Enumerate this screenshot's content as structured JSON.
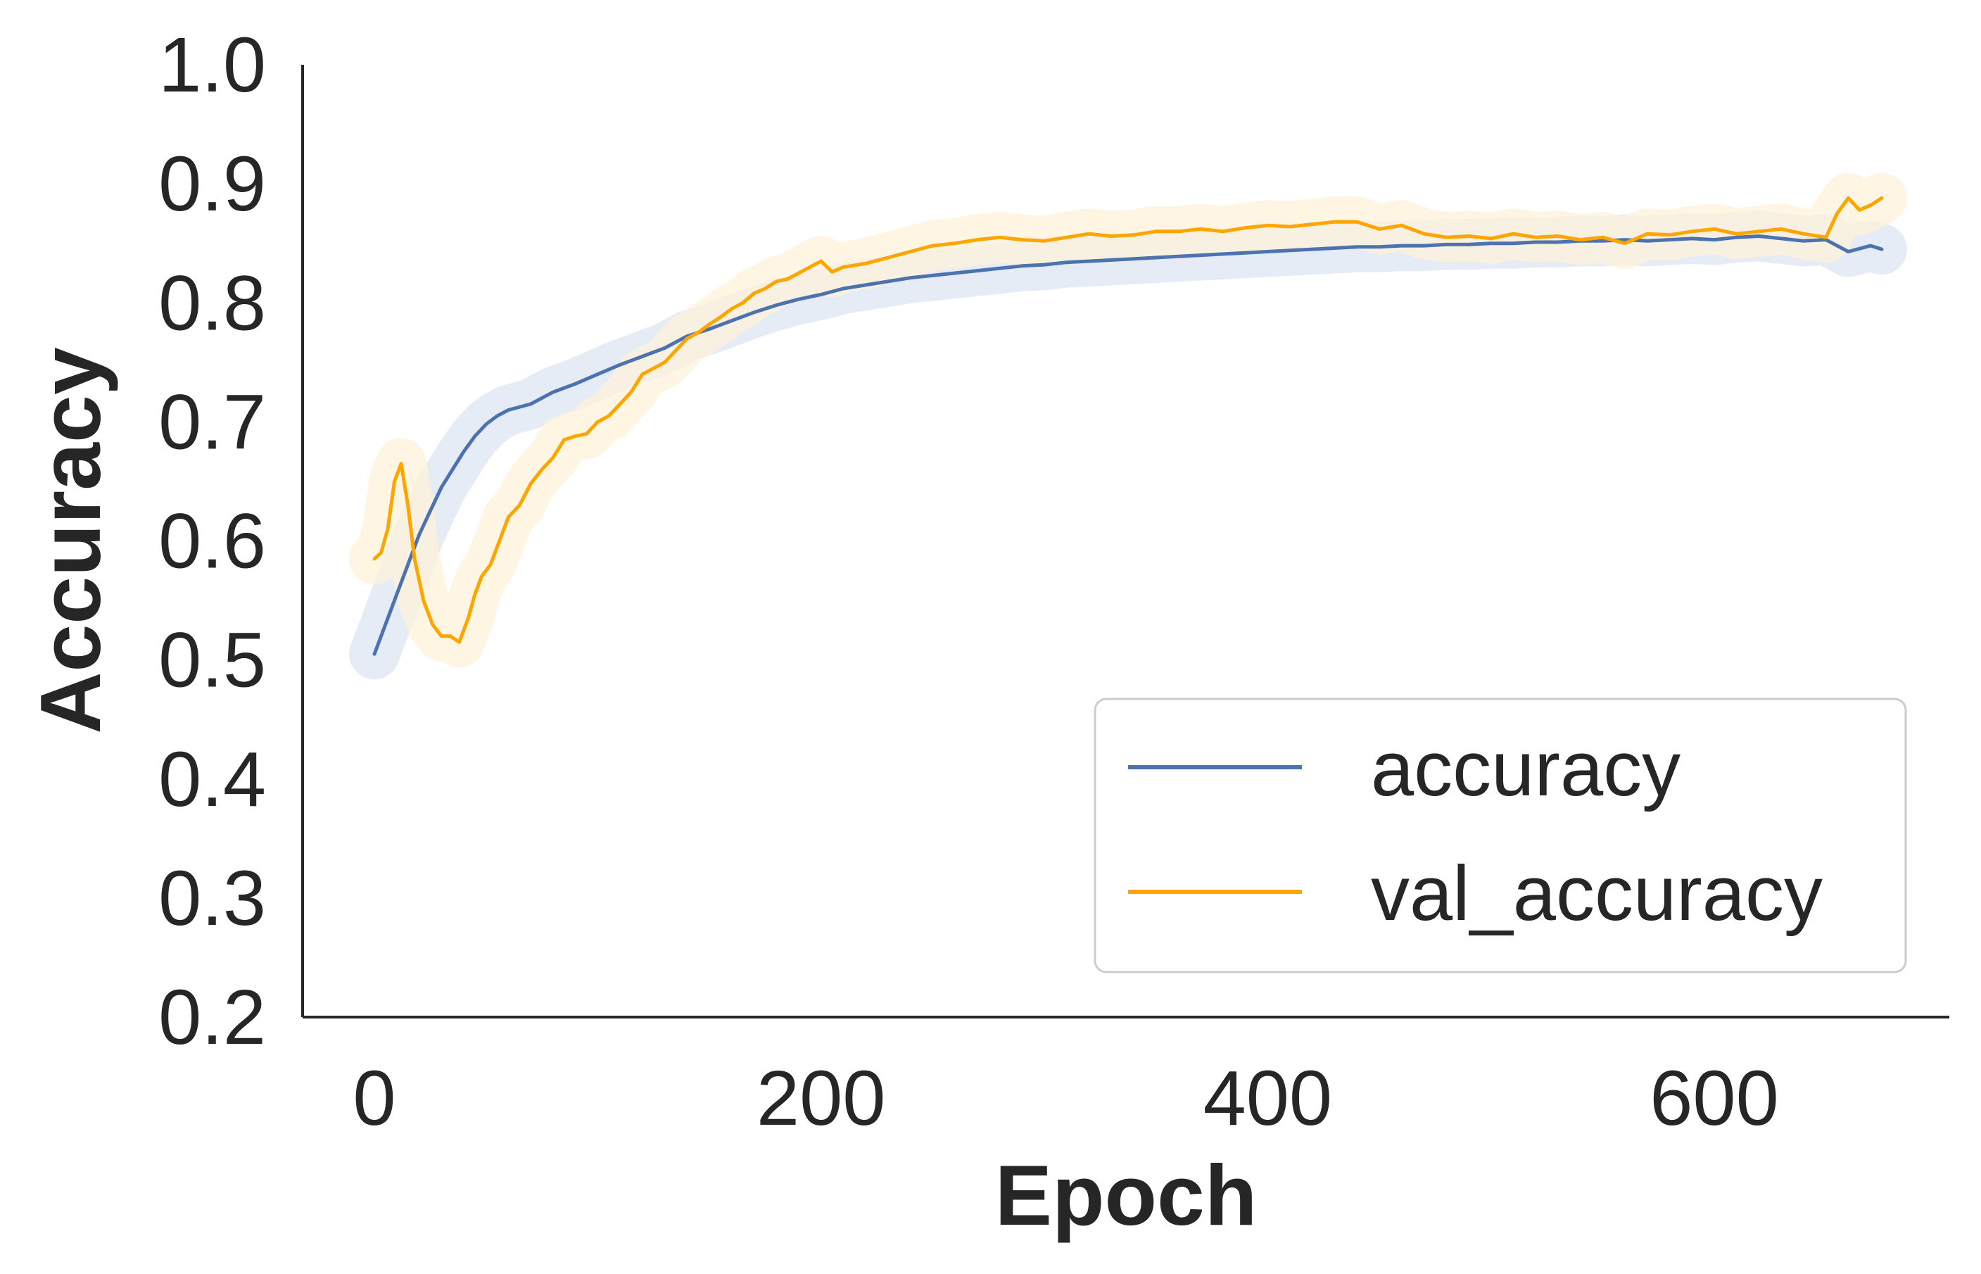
{
  "chart_data": {
    "type": "line",
    "title": "",
    "xlabel": "Epoch",
    "ylabel": "Accuracy",
    "xlim": [
      -35,
      705
    ],
    "ylim": [
      0.2,
      1.0
    ],
    "xticks": [
      0,
      200,
      400,
      600
    ],
    "xtick_labels": [
      "0",
      "200",
      "400",
      "600"
    ],
    "yticks": [
      0.2,
      0.3,
      0.4,
      0.5,
      0.6,
      0.7,
      0.8,
      0.9,
      1.0
    ],
    "ytick_labels": [
      "0.2",
      "0.3",
      "0.4",
      "0.5",
      "0.6",
      "0.7",
      "0.8",
      "0.9",
      "1.0"
    ],
    "grid": false,
    "legend_position": "lower-right",
    "series": [
      {
        "name": "accuracy",
        "color": "#4c72b0",
        "band_color": "#dde5f3",
        "x": [
          0,
          5,
          10,
          15,
          20,
          25,
          30,
          35,
          40,
          45,
          50,
          55,
          60,
          70,
          80,
          90,
          100,
          110,
          120,
          130,
          140,
          150,
          160,
          170,
          180,
          190,
          200,
          210,
          220,
          230,
          240,
          250,
          260,
          270,
          280,
          290,
          300,
          310,
          320,
          330,
          340,
          350,
          360,
          370,
          380,
          390,
          400,
          410,
          420,
          430,
          440,
          450,
          460,
          470,
          480,
          490,
          500,
          510,
          520,
          530,
          540,
          550,
          560,
          570,
          580,
          590,
          600,
          610,
          620,
          630,
          640,
          650,
          660,
          670,
          675
        ],
        "values": [
          0.505,
          0.53,
          0.555,
          0.58,
          0.605,
          0.625,
          0.645,
          0.66,
          0.675,
          0.688,
          0.698,
          0.705,
          0.71,
          0.715,
          0.725,
          0.732,
          0.74,
          0.748,
          0.755,
          0.762,
          0.772,
          0.778,
          0.785,
          0.792,
          0.798,
          0.803,
          0.807,
          0.812,
          0.815,
          0.818,
          0.821,
          0.823,
          0.825,
          0.827,
          0.829,
          0.831,
          0.832,
          0.834,
          0.835,
          0.836,
          0.837,
          0.838,
          0.839,
          0.84,
          0.841,
          0.842,
          0.843,
          0.844,
          0.845,
          0.846,
          0.847,
          0.847,
          0.848,
          0.848,
          0.849,
          0.849,
          0.85,
          0.85,
          0.851,
          0.851,
          0.852,
          0.852,
          0.853,
          0.852,
          0.853,
          0.854,
          0.853,
          0.855,
          0.856,
          0.854,
          0.852,
          0.853,
          0.843,
          0.848,
          0.845
        ]
      },
      {
        "name": "val_accuracy",
        "color": "#ffa500",
        "band_color": "#fdf1d9",
        "x": [
          0,
          3,
          6,
          9,
          12,
          15,
          18,
          22,
          26,
          30,
          34,
          38,
          42,
          45,
          48,
          52,
          56,
          60,
          65,
          70,
          75,
          80,
          85,
          90,
          95,
          100,
          105,
          110,
          115,
          120,
          125,
          130,
          135,
          140,
          145,
          150,
          155,
          160,
          165,
          170,
          175,
          180,
          185,
          190,
          195,
          200,
          205,
          210,
          220,
          230,
          240,
          250,
          260,
          270,
          280,
          290,
          300,
          310,
          320,
          330,
          340,
          350,
          360,
          370,
          380,
          390,
          400,
          410,
          420,
          430,
          440,
          450,
          460,
          470,
          480,
          490,
          500,
          510,
          520,
          530,
          540,
          550,
          560,
          570,
          580,
          590,
          600,
          610,
          620,
          630,
          640,
          650,
          655,
          660,
          665,
          670,
          675
        ],
        "values": [
          0.585,
          0.59,
          0.61,
          0.65,
          0.665,
          0.63,
          0.585,
          0.55,
          0.53,
          0.52,
          0.52,
          0.515,
          0.535,
          0.555,
          0.57,
          0.58,
          0.6,
          0.62,
          0.63,
          0.648,
          0.66,
          0.67,
          0.685,
          0.688,
          0.69,
          0.7,
          0.705,
          0.715,
          0.725,
          0.74,
          0.745,
          0.75,
          0.76,
          0.77,
          0.775,
          0.782,
          0.788,
          0.795,
          0.8,
          0.808,
          0.812,
          0.818,
          0.82,
          0.825,
          0.83,
          0.835,
          0.826,
          0.83,
          0.833,
          0.838,
          0.843,
          0.848,
          0.85,
          0.853,
          0.855,
          0.853,
          0.852,
          0.855,
          0.858,
          0.856,
          0.857,
          0.86,
          0.86,
          0.862,
          0.86,
          0.863,
          0.865,
          0.864,
          0.866,
          0.868,
          0.868,
          0.862,
          0.865,
          0.858,
          0.855,
          0.856,
          0.854,
          0.858,
          0.855,
          0.856,
          0.853,
          0.855,
          0.85,
          0.858,
          0.857,
          0.86,
          0.862,
          0.858,
          0.86,
          0.862,
          0.858,
          0.855,
          0.875,
          0.888,
          0.878,
          0.882,
          0.888
        ]
      }
    ]
  }
}
